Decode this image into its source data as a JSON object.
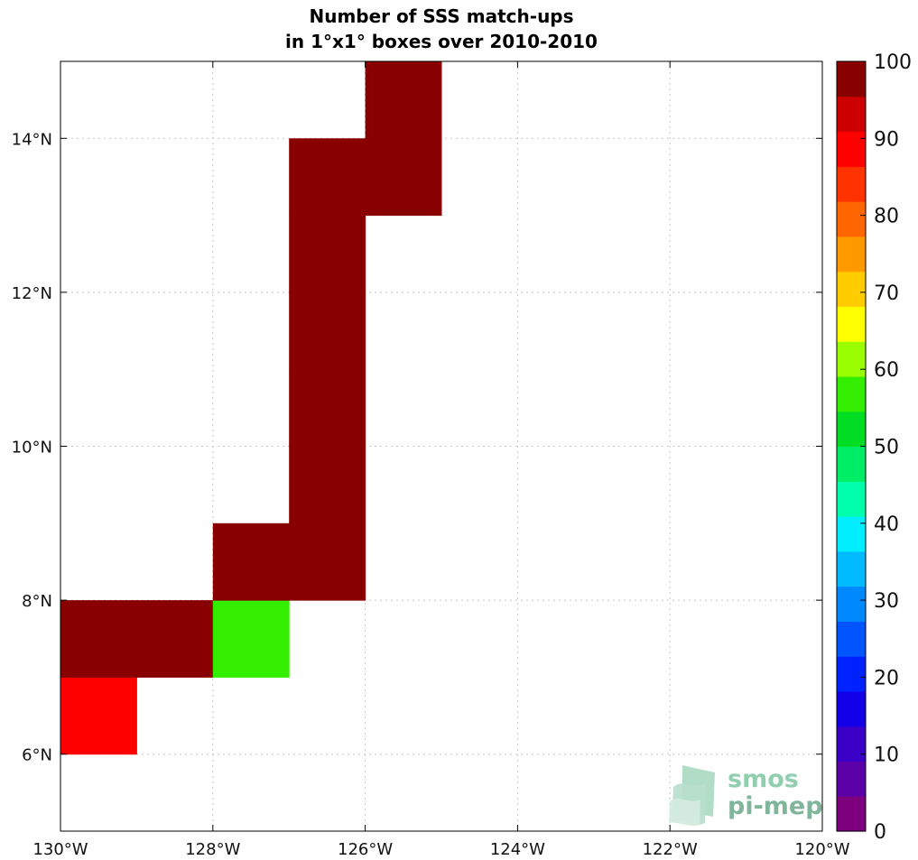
{
  "chart_data": {
    "type": "heatmap",
    "title_line1": "Number of SSS match-ups",
    "title_line2": "in 1°x1° boxes over 2010-2010",
    "xlim": [
      -130,
      -120
    ],
    "ylim": [
      5,
      15
    ],
    "x_ticks": [
      {
        "value": -130,
        "label": "130°W"
      },
      {
        "value": -128,
        "label": "128°W"
      },
      {
        "value": -126,
        "label": "126°W"
      },
      {
        "value": -124,
        "label": "124°W"
      },
      {
        "value": -122,
        "label": "122°W"
      },
      {
        "value": -120,
        "label": "120°W"
      }
    ],
    "y_ticks": [
      {
        "value": 6,
        "label": "6°N"
      },
      {
        "value": 8,
        "label": "8°N"
      },
      {
        "value": 10,
        "label": "10°N"
      },
      {
        "value": 12,
        "label": "12°N"
      },
      {
        "value": 14,
        "label": "14°N"
      }
    ],
    "grid": true,
    "cells": [
      {
        "lon": -130,
        "lat": 6,
        "value": 90
      },
      {
        "lon": -130,
        "lat": 7,
        "value": 100
      },
      {
        "lon": -129,
        "lat": 7,
        "value": 100
      },
      {
        "lon": -128,
        "lat": 7,
        "value": 58
      },
      {
        "lon": -128,
        "lat": 8,
        "value": 100
      },
      {
        "lon": -127,
        "lat": 8,
        "value": 100
      },
      {
        "lon": -127,
        "lat": 9,
        "value": 100
      },
      {
        "lon": -127,
        "lat": 10,
        "value": 100
      },
      {
        "lon": -127,
        "lat": 11,
        "value": 100
      },
      {
        "lon": -127,
        "lat": 12,
        "value": 100
      },
      {
        "lon": -127,
        "lat": 13,
        "value": 100
      },
      {
        "lon": -126,
        "lat": 13,
        "value": 100
      },
      {
        "lon": -126,
        "lat": 14,
        "value": 100
      }
    ],
    "colorbar": {
      "min": 0,
      "max": 100,
      "labels": [
        "0",
        "10",
        "20",
        "30",
        "40",
        "50",
        "60",
        "70",
        "80",
        "90",
        "100"
      ],
      "colors": [
        "#7f007f",
        "#5c00a8",
        "#3a00c8",
        "#1400e8",
        "#0022ff",
        "#0055ff",
        "#0088ff",
        "#00bbff",
        "#00eeff",
        "#00ffaa",
        "#00ee66",
        "#00dd22",
        "#33ee00",
        "#99ff00",
        "#ffff00",
        "#ffcc00",
        "#ff9900",
        "#ff6600",
        "#ff3300",
        "#ff0000",
        "#cc0000",
        "#880000"
      ]
    }
  },
  "watermark": {
    "line1": "smos",
    "line2": "pi-mep",
    "color1": "#8fcfae",
    "color2": "#7fb59a"
  }
}
